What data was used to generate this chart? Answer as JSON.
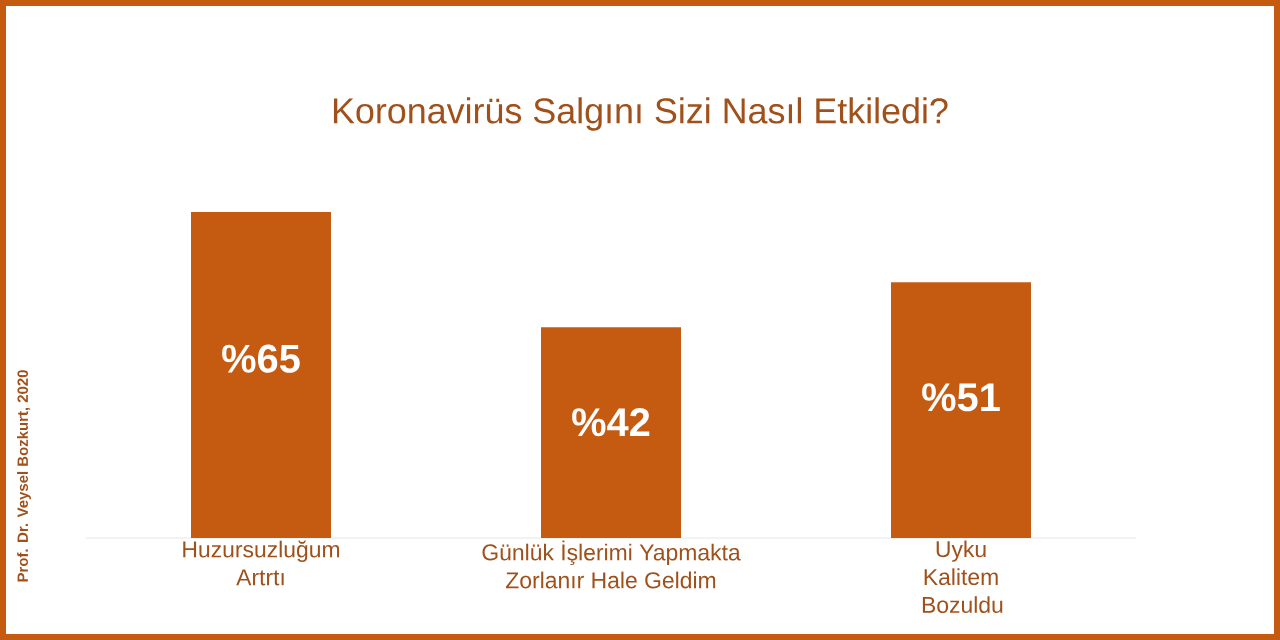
{
  "chart_data": {
    "type": "bar",
    "title": "Koronavirüs Salgını Sizi Nasıl Etkiledi?",
    "categories": [
      "Huzursuzluğum Artrtı",
      "Günlük İşlerimi Yapmakta Zorlanır Hale Geldim",
      "Uyku Kalitem Bozuldu"
    ],
    "values": [
      65,
      42,
      51
    ],
    "value_labels": [
      "%65",
      "%42",
      "%51"
    ],
    "color": "#c55a11",
    "annotations": [
      "Prof. Dr. Veysel Bozkurt, 2020"
    ]
  }
}
